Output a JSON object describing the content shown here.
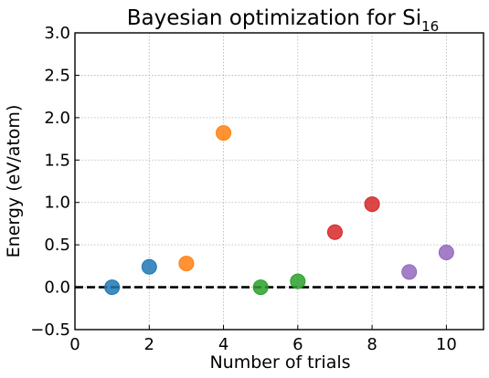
{
  "chart_data": {
    "type": "scatter",
    "title": "Bayesian optimization for Si",
    "title_subscript": "16",
    "xlabel": "Number of trials",
    "ylabel": "Energy (eV/atom)",
    "xlim": [
      0,
      11
    ],
    "ylim": [
      -0.5,
      3.0
    ],
    "xticks": [
      0,
      2,
      4,
      6,
      8,
      10
    ],
    "yticks": [
      -0.5,
      0.0,
      0.5,
      1.0,
      1.5,
      2.0,
      2.5,
      3.0
    ],
    "ytick_labels": [
      "−0.5",
      "0.0",
      "0.5",
      "1.0",
      "1.5",
      "2.0",
      "2.5",
      "3.0"
    ],
    "grid": true,
    "reference_line": {
      "y": 0.0,
      "style": "dashed",
      "color": "#000000"
    },
    "points": [
      {
        "x": 1,
        "y": 0.0,
        "color": "#1f77b4"
      },
      {
        "x": 2,
        "y": 0.24,
        "color": "#1f77b4"
      },
      {
        "x": 3,
        "y": 0.28,
        "color": "#ff7f0e"
      },
      {
        "x": 4,
        "y": 1.82,
        "color": "#ff7f0e"
      },
      {
        "x": 5,
        "y": 0.0,
        "color": "#2ca02c"
      },
      {
        "x": 6,
        "y": 0.07,
        "color": "#2ca02c"
      },
      {
        "x": 7,
        "y": 0.65,
        "color": "#d62728"
      },
      {
        "x": 8,
        "y": 0.98,
        "color": "#d62728"
      },
      {
        "x": 9,
        "y": 0.18,
        "color": "#9467bd"
      },
      {
        "x": 10,
        "y": 0.41,
        "color": "#9467bd"
      }
    ]
  }
}
